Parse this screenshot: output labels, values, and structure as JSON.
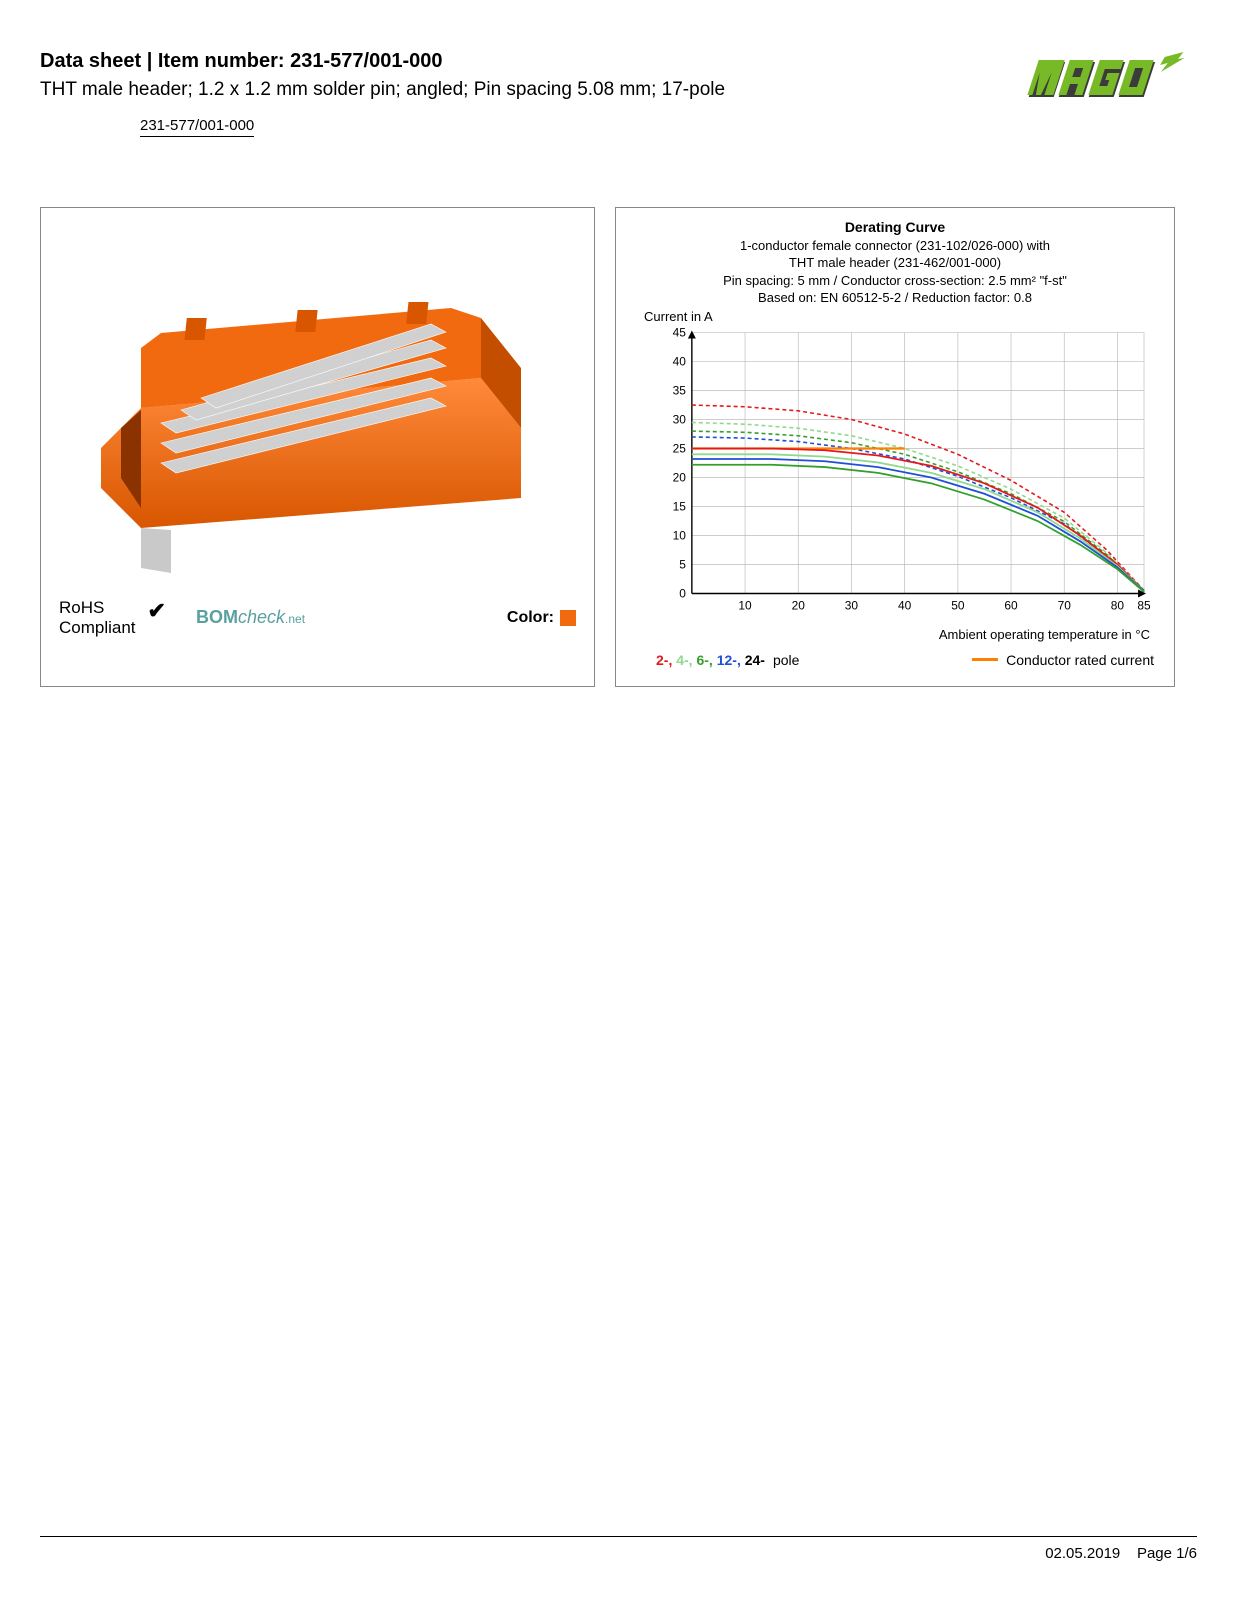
{
  "header": {
    "title_prefix": "Data sheet",
    "title_sep": " | ",
    "title_item_label": "Item number:",
    "item_number": "231-577/001-000",
    "subtitle": "THT male header; 1.2 x 1.2 mm solder pin; angled; Pin spacing 5.08 mm; 17-pole",
    "link_text": "231-577/001-000"
  },
  "logo": {
    "text": "WAGO",
    "fill": "#78b928",
    "shadow": "#3b3b3b"
  },
  "product_panel": {
    "connector_color": "#f26a10",
    "pin_color": "#c9c9c9",
    "rohs_line1": "RoHS",
    "rohs_line2": "Compliant",
    "checkmark": "✔",
    "bomcheck_bold": "BOM",
    "bomcheck_rest": "check",
    "bomcheck_suffix": ".net",
    "color_label": "Color:",
    "color_swatch": "#f26a10"
  },
  "chart": {
    "title": "Derating Curve",
    "sub1": "1-conductor female connector (231-102/026-000) with",
    "sub2": "THT male header (231-462/001-000)",
    "sub3": "Pin spacing: 5 mm / Conductor cross-section: 2.5 mm² \"f-st\"",
    "sub4": "Based on: EN 60512-5-2 / Reduction factor: 0.8",
    "y_axis_label": "Current in A",
    "x_axis_label": "Ambient operating temperature in °C",
    "y_ticks": [
      0,
      5,
      10,
      15,
      20,
      25,
      30,
      35,
      40,
      45
    ],
    "x_ticks": [
      10,
      20,
      30,
      40,
      50,
      60,
      70,
      80,
      85
    ],
    "xlim": [
      0,
      85
    ],
    "ylim": [
      0,
      45
    ],
    "grid_color": "#bdbdbd",
    "axis_color": "#000000",
    "legend": {
      "pole_prefixes": [
        {
          "t": "2-",
          "c": "#e31a1c"
        },
        {
          "t": "4-",
          "c": "#8fd98f"
        },
        {
          "t": "6-",
          "c": "#33a02c"
        },
        {
          "t": "12-",
          "c": "#1f4fd6"
        },
        {
          "t": "24-",
          "c": "#000000"
        }
      ],
      "pole_suffix": " pole",
      "rated_label": "Conductor rated current",
      "rated_color": "#ff7f00"
    },
    "series": [
      {
        "name": "2-pole-dashed",
        "color": "#e31a1c",
        "dash": "4,3",
        "w": 1.6,
        "pts": [
          [
            0,
            32.5
          ],
          [
            10,
            32.2
          ],
          [
            20,
            31.5
          ],
          [
            30,
            30
          ],
          [
            40,
            27.5
          ],
          [
            50,
            24
          ],
          [
            60,
            19.5
          ],
          [
            70,
            14
          ],
          [
            78,
            7.5
          ],
          [
            85,
            0.5
          ]
        ]
      },
      {
        "name": "4-pole-dashed",
        "color": "#8fd98f",
        "dash": "4,3",
        "w": 1.6,
        "pts": [
          [
            0,
            29.5
          ],
          [
            10,
            29.2
          ],
          [
            20,
            28.5
          ],
          [
            30,
            27.2
          ],
          [
            40,
            25
          ],
          [
            50,
            22
          ],
          [
            60,
            18
          ],
          [
            70,
            13
          ],
          [
            78,
            7
          ],
          [
            85,
            0.5
          ]
        ]
      },
      {
        "name": "6-pole-dashed",
        "color": "#33a02c",
        "dash": "4,3",
        "w": 1.6,
        "pts": [
          [
            0,
            28
          ],
          [
            10,
            27.8
          ],
          [
            20,
            27.2
          ],
          [
            30,
            26
          ],
          [
            40,
            24
          ],
          [
            50,
            21
          ],
          [
            60,
            17.2
          ],
          [
            70,
            12.4
          ],
          [
            78,
            6.7
          ],
          [
            85,
            0.5
          ]
        ]
      },
      {
        "name": "12-pole-dashed",
        "color": "#1f4fd6",
        "dash": "4,3",
        "w": 1.6,
        "pts": [
          [
            0,
            27
          ],
          [
            10,
            26.8
          ],
          [
            20,
            26.2
          ],
          [
            30,
            25
          ],
          [
            40,
            23.2
          ],
          [
            50,
            20.2
          ],
          [
            60,
            16.5
          ],
          [
            70,
            12
          ],
          [
            78,
            6.4
          ],
          [
            85,
            0.5
          ]
        ]
      },
      {
        "name": "rated",
        "color": "#ff7f00",
        "dash": "",
        "w": 2.2,
        "pts": [
          [
            0,
            25
          ],
          [
            20,
            25
          ],
          [
            40,
            25
          ]
        ]
      },
      {
        "name": "2-pole",
        "color": "#e31a1c",
        "dash": "",
        "w": 1.8,
        "pts": [
          [
            0,
            25
          ],
          [
            15,
            25
          ],
          [
            25,
            24.7
          ],
          [
            35,
            23.8
          ],
          [
            45,
            22
          ],
          [
            55,
            19
          ],
          [
            65,
            14.8
          ],
          [
            73,
            10
          ],
          [
            80,
            5
          ],
          [
            85,
            0.3
          ]
        ]
      },
      {
        "name": "4-pole",
        "color": "#8fd98f",
        "dash": "",
        "w": 1.8,
        "pts": [
          [
            0,
            24
          ],
          [
            15,
            24
          ],
          [
            25,
            23.6
          ],
          [
            35,
            22.6
          ],
          [
            45,
            20.8
          ],
          [
            55,
            18
          ],
          [
            65,
            14
          ],
          [
            73,
            9.5
          ],
          [
            80,
            4.7
          ],
          [
            85,
            0.3
          ]
        ]
      },
      {
        "name": "12-pole",
        "color": "#1f4fd6",
        "dash": "",
        "w": 1.8,
        "pts": [
          [
            0,
            23.2
          ],
          [
            15,
            23.2
          ],
          [
            25,
            22.8
          ],
          [
            35,
            21.8
          ],
          [
            45,
            20
          ],
          [
            55,
            17.2
          ],
          [
            65,
            13.4
          ],
          [
            73,
            9
          ],
          [
            80,
            4.5
          ],
          [
            85,
            0.3
          ]
        ]
      },
      {
        "name": "6-pole",
        "color": "#33a02c",
        "dash": "",
        "w": 1.8,
        "pts": [
          [
            0,
            22.2
          ],
          [
            15,
            22.2
          ],
          [
            25,
            21.8
          ],
          [
            35,
            20.8
          ],
          [
            45,
            19
          ],
          [
            55,
            16.2
          ],
          [
            65,
            12.5
          ],
          [
            73,
            8.4
          ],
          [
            80,
            4.2
          ],
          [
            85,
            0.3
          ]
        ]
      }
    ]
  },
  "footer": {
    "date": "02.05.2019",
    "page": "Page 1/6"
  }
}
